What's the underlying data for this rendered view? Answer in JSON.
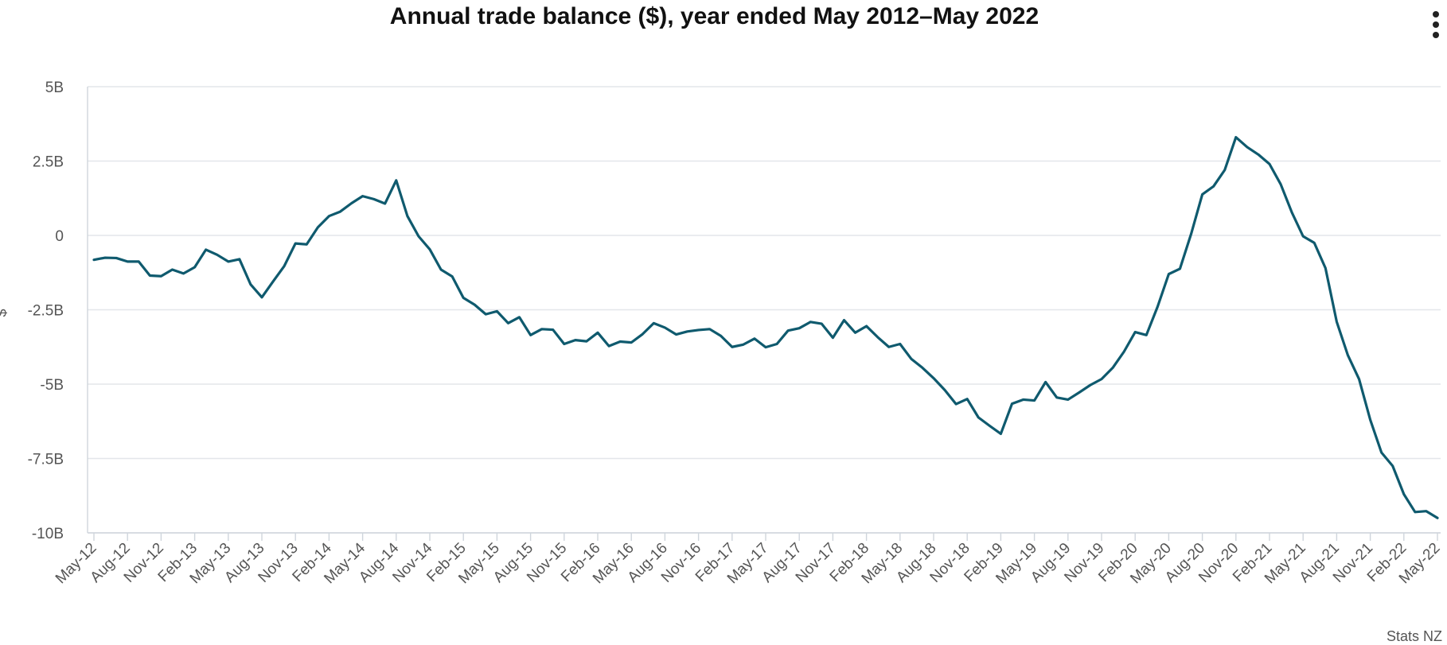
{
  "menu_icon": "more-vertical-icon",
  "credit": "Stats NZ",
  "chart_data": {
    "type": "line",
    "title": "Annual trade balance ($), year ended May 2012–May 2022",
    "xlabel": "",
    "ylabel": "$",
    "ylim": [
      -10,
      5
    ],
    "unit": "billions NZD",
    "yticks": [
      5,
      2.5,
      0,
      -2.5,
      -5,
      -7.5,
      -10
    ],
    "ytick_labels": [
      "5B",
      "2.5B",
      "0",
      "-2.5B",
      "-5B",
      "-7.5B",
      "-10B"
    ],
    "x_tick_labels": [
      "May-12",
      "Aug-12",
      "Nov-12",
      "Feb-13",
      "May-13",
      "Aug-13",
      "Nov-13",
      "Feb-14",
      "May-14",
      "Aug-14",
      "Nov-14",
      "Feb-15",
      "May-15",
      "Aug-15",
      "Nov-15",
      "Feb-16",
      "May-16",
      "Aug-16",
      "Nov-16",
      "Feb-17",
      "May-17",
      "Aug-17",
      "Nov-17",
      "Feb-18",
      "May-18",
      "Aug-18",
      "Nov-18",
      "Feb-19",
      "May-19",
      "Aug-19",
      "Nov-19",
      "Feb-20",
      "May-20",
      "Aug-20",
      "Nov-20",
      "Feb-21",
      "May-21",
      "Aug-21",
      "Nov-21",
      "Feb-22",
      "May-22"
    ],
    "x_tick_step_months": 3,
    "line_color": "#0f5a6e",
    "grid": true,
    "series": [
      {
        "name": "Annual trade balance",
        "start": "May-12",
        "frequency": "monthly",
        "values": [
          -0.82,
          -0.75,
          -0.76,
          -0.88,
          -0.88,
          -1.35,
          -1.37,
          -1.15,
          -1.28,
          -1.07,
          -0.48,
          -0.65,
          -0.88,
          -0.8,
          -1.65,
          -2.08,
          -1.55,
          -1.03,
          -0.27,
          -0.3,
          0.27,
          0.65,
          0.8,
          1.08,
          1.32,
          1.22,
          1.07,
          1.85,
          0.65,
          -0.03,
          -0.47,
          -1.15,
          -1.38,
          -2.1,
          -2.33,
          -2.65,
          -2.55,
          -2.95,
          -2.75,
          -3.35,
          -3.15,
          -3.17,
          -3.65,
          -3.52,
          -3.56,
          -3.27,
          -3.72,
          -3.57,
          -3.6,
          -3.32,
          -2.95,
          -3.1,
          -3.33,
          -3.23,
          -3.18,
          -3.15,
          -3.38,
          -3.75,
          -3.67,
          -3.47,
          -3.76,
          -3.65,
          -3.2,
          -3.12,
          -2.91,
          -2.97,
          -3.44,
          -2.85,
          -3.27,
          -3.05,
          -3.42,
          -3.75,
          -3.65,
          -4.15,
          -4.45,
          -4.8,
          -5.2,
          -5.67,
          -5.5,
          -6.12,
          -6.4,
          -6.67,
          -5.66,
          -5.52,
          -5.55,
          -4.93,
          -5.45,
          -5.52,
          -5.28,
          -5.03,
          -4.83,
          -4.45,
          -3.91,
          -3.25,
          -3.35,
          -2.4,
          -1.3,
          -1.12,
          0.05,
          1.38,
          1.65,
          2.2,
          3.3,
          2.97,
          2.72,
          2.4,
          1.72,
          0.77,
          -0.03,
          -0.25,
          -1.1,
          -2.9,
          -4.03,
          -4.83,
          -6.2,
          -7.3,
          -7.75,
          -8.7,
          -9.3,
          -9.27,
          -9.5
        ]
      }
    ]
  }
}
